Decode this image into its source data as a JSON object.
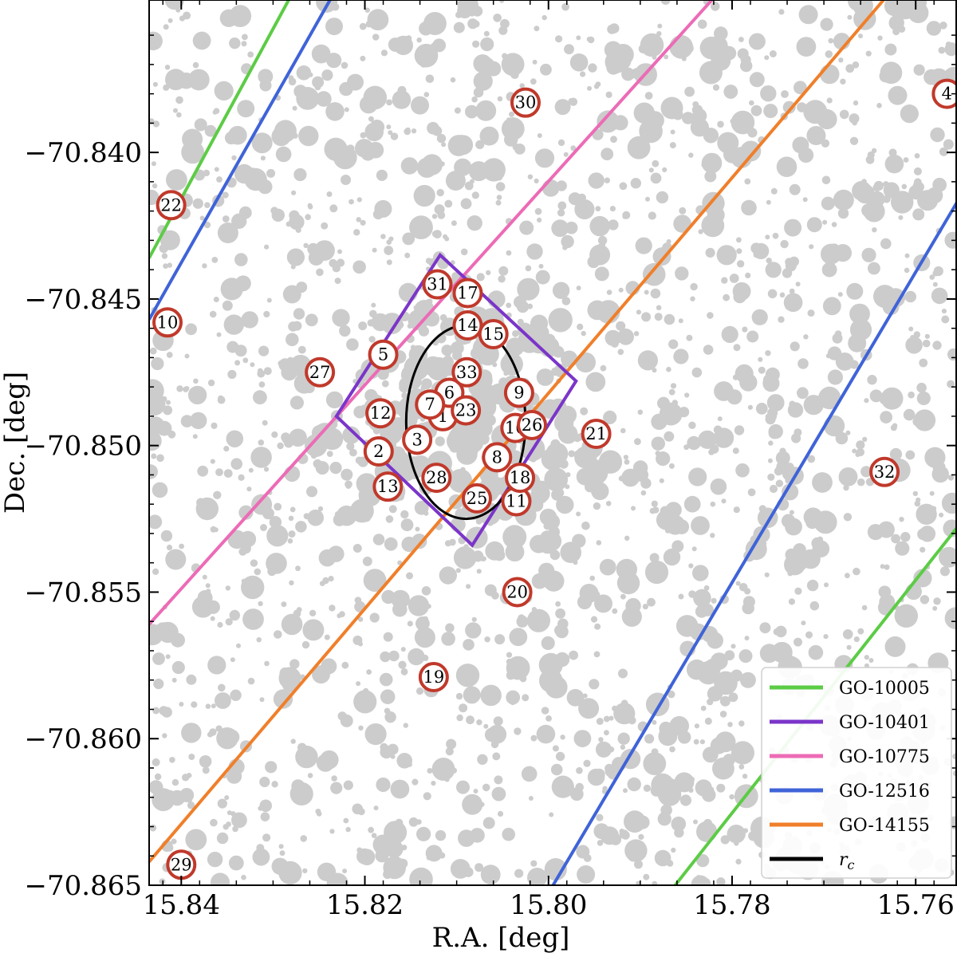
{
  "chart_data": {
    "type": "scatter",
    "xlabel": "R.A. [deg]",
    "ylabel": "Dec. [deg]",
    "xlim": [
      15.8435,
      15.7555
    ],
    "ylim": [
      -70.865,
      -70.8348
    ],
    "x_ticks": [
      15.84,
      15.82,
      15.8,
      15.78,
      15.76
    ],
    "x_tick_labels": [
      "15.84",
      "15.82",
      "15.80",
      "15.78",
      "15.76"
    ],
    "y_ticks": [
      -70.84,
      -70.845,
      -70.85,
      -70.855,
      -70.86,
      -70.865
    ],
    "y_tick_labels": [
      "−70.840",
      "−70.845",
      "−70.850",
      "−70.855",
      "−70.860",
      "−70.865"
    ],
    "grid": false,
    "legend_placement": "lower-right",
    "background_stars_color": "#cccccc",
    "marker_edge_color": "#c0392b",
    "colors": {
      "GO-10005": "#5ccc45",
      "GO-10401": "#7b35c9",
      "GO-10775": "#ec6bb6",
      "GO-12516": "#3f63d8",
      "GO-14155": "#f07f2a",
      "rc": "#000000"
    },
    "legend": [
      {
        "label": "GO-10005",
        "color": "#5ccc45"
      },
      {
        "label": "GO-10401",
        "color": "#7b35c9"
      },
      {
        "label": "GO-10775",
        "color": "#ec6bb6"
      },
      {
        "label": "GO-12516",
        "color": "#3f63d8"
      },
      {
        "label": "GO-14155",
        "color": "#f07f2a"
      },
      {
        "label": "r",
        "sub": "c",
        "color": "#000000"
      }
    ],
    "footprint_lines": [
      {
        "program": "GO-10005",
        "points": [
          [
            15.8435,
            -70.8436
          ],
          [
            15.8283,
            -70.8348
          ]
        ]
      },
      {
        "program": "GO-10005",
        "points": [
          [
            15.7862,
            -70.865
          ],
          [
            15.7555,
            -70.8528
          ]
        ]
      },
      {
        "program": "GO-12516",
        "points": [
          [
            15.8435,
            -70.8457
          ],
          [
            15.8238,
            -70.8348
          ]
        ]
      },
      {
        "program": "GO-12516",
        "points": [
          [
            15.7995,
            -70.865
          ],
          [
            15.7555,
            -70.8417
          ]
        ]
      },
      {
        "program": "GO-10775",
        "points": [
          [
            15.8435,
            -70.8561
          ],
          [
            15.7822,
            -70.8348
          ]
        ]
      },
      {
        "program": "GO-14155",
        "points": [
          [
            15.8435,
            -70.8642
          ],
          [
            15.7635,
            -70.8348
          ]
        ]
      }
    ],
    "go10401_polygon": [
      [
        15.8118,
        -70.8435
      ],
      [
        15.797,
        -70.8478
      ],
      [
        15.8083,
        -70.8534
      ],
      [
        15.8231,
        -70.849
      ]
    ],
    "core_radius_circle": {
      "center": [
        15.809,
        -70.8492
      ],
      "radius_x_deg": 0.0065,
      "radius_y_deg": 0.0033
    },
    "numbered_stars": [
      {
        "id": "1",
        "ra": 15.8115,
        "dec": -70.849
      },
      {
        "id": "2",
        "ra": 15.8185,
        "dec": -70.8502
      },
      {
        "id": "3",
        "ra": 15.8143,
        "dec": -70.8498
      },
      {
        "id": "4",
        "ra": 15.7566,
        "dec": -70.838
      },
      {
        "id": "5",
        "ra": 15.818,
        "dec": -70.8469
      },
      {
        "id": "6",
        "ra": 15.8108,
        "dec": -70.8482
      },
      {
        "id": "7",
        "ra": 15.8129,
        "dec": -70.8486
      },
      {
        "id": "8",
        "ra": 15.8056,
        "dec": -70.8504
      },
      {
        "id": "9",
        "ra": 15.8032,
        "dec": -70.8482
      },
      {
        "id": "10",
        "ra": 15.8415,
        "dec": -70.8458
      },
      {
        "id": "11",
        "ra": 15.8035,
        "dec": -70.8519
      },
      {
        "id": "12",
        "ra": 15.8183,
        "dec": -70.8489
      },
      {
        "id": "13",
        "ra": 15.8175,
        "dec": -70.8514
      },
      {
        "id": "14",
        "ra": 15.8088,
        "dec": -70.8459
      },
      {
        "id": "15",
        "ra": 15.806,
        "dec": -70.8462
      },
      {
        "id": "16",
        "ra": 15.8036,
        "dec": -70.8494
      },
      {
        "id": "17",
        "ra": 15.8088,
        "dec": -70.8448
      },
      {
        "id": "18",
        "ra": 15.8031,
        "dec": -70.8511
      },
      {
        "id": "19",
        "ra": 15.8125,
        "dec": -70.8579
      },
      {
        "id": "20",
        "ra": 15.8034,
        "dec": -70.855
      },
      {
        "id": "21",
        "ra": 15.7948,
        "dec": -70.8496
      },
      {
        "id": "22",
        "ra": 15.8411,
        "dec": -70.8418
      },
      {
        "id": "23",
        "ra": 15.809,
        "dec": -70.8488
      },
      {
        "id": "25",
        "ra": 15.8078,
        "dec": -70.8518
      },
      {
        "id": "26",
        "ra": 15.8018,
        "dec": -70.8493
      },
      {
        "id": "27",
        "ra": 15.8249,
        "dec": -70.8475
      },
      {
        "id": "28",
        "ra": 15.8122,
        "dec": -70.8511
      },
      {
        "id": "29",
        "ra": 15.84,
        "dec": -70.8643
      },
      {
        "id": "30",
        "ra": 15.8025,
        "dec": -70.8383
      },
      {
        "id": "31",
        "ra": 15.8121,
        "dec": -70.8445
      },
      {
        "id": "32",
        "ra": 15.7634,
        "dec": -70.8509
      },
      {
        "id": "33",
        "ra": 15.8089,
        "dec": -70.8475
      }
    ]
  }
}
